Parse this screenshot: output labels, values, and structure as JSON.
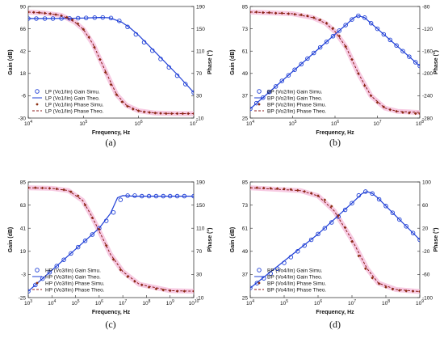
{
  "colors": {
    "gain": "#1f3fd6",
    "phase_line": "#8b1a1a",
    "phase_marker": "#8b2e10",
    "band": "#f4b8d8"
  },
  "chart_data": [
    {
      "type": "line",
      "caption": "(a)",
      "xlabel": "Frequency, Hz",
      "ylabel": "Gain (dB)",
      "y2label": "Phase (°)",
      "xscale": "log",
      "xlim": [
        10000,
        10000000
      ],
      "ylim": [
        -30,
        90
      ],
      "y2lim": [
        -10,
        190
      ],
      "xticks": [
        "10^4",
        "10^5",
        "10^6",
        "10^7"
      ],
      "yticks": [
        "-30",
        "-6",
        "18",
        "42",
        "66",
        "90"
      ],
      "y2ticks": [
        "-10",
        "30",
        "70",
        "110",
        "150",
        "190"
      ],
      "legend_position": "lower-left",
      "series": [
        {
          "name": "LP (Vo1/Iin) Gain Simu.",
          "axis": "left",
          "style": "marker-circle",
          "x": [
            10000,
            14000,
            20000,
            28000,
            40000,
            56000,
            80000,
            112000,
            160000,
            224000,
            316000,
            447000,
            632000,
            894000,
            1260000,
            1780000,
            2510000,
            3550000,
            5010000,
            7080000,
            10000000
          ],
          "y": [
            77,
            77,
            77,
            77,
            77.1,
            77.2,
            77.4,
            77.7,
            78,
            78.2,
            77.6,
            74.5,
            68,
            60,
            51.5,
            42.5,
            33.5,
            24.5,
            15.5,
            6.5,
            -2.5
          ]
        },
        {
          "name": "LP (Vo1/Iin) Gain Theo.",
          "axis": "left",
          "style": "solid",
          "x": [
            10000,
            20000,
            50000,
            100000,
            200000,
            300000,
            500000,
            700000,
            1000000,
            2000000,
            5000000,
            10000000
          ],
          "y": [
            77,
            77,
            77.2,
            77.6,
            78.2,
            77.8,
            73,
            67,
            59,
            41,
            17,
            -2.5
          ]
        },
        {
          "name": "LP (Vo1/Iin) Phase Simu.",
          "axis": "right",
          "style": "marker-diamond",
          "x": [
            10000,
            12600,
            15800,
            20000,
            25100,
            31600,
            39800,
            50100,
            63100,
            79400,
            100000,
            126000,
            158000,
            200000,
            251000,
            316000,
            398000,
            501000,
            631000,
            794000,
            1000000,
            1260000,
            1580000,
            2000000,
            2510000,
            3160000,
            3980000,
            5010000,
            6310000,
            7940000,
            10000000
          ],
          "y": [
            180,
            179.5,
            179,
            178,
            177,
            175.5,
            173.5,
            170.5,
            166,
            159,
            149,
            135,
            117,
            95,
            72,
            50,
            32,
            19,
            11,
            6,
            3,
            1,
            0,
            -1,
            -1.5,
            -2,
            -2,
            -2,
            -2,
            -2,
            -2
          ]
        },
        {
          "name": "LP (Vo1/Iin) Phase Theo.",
          "axis": "right",
          "style": "dashed",
          "x": [
            10000,
            20000,
            40000,
            70000,
            100000,
            150000,
            200000,
            300000,
            400000,
            600000,
            1000000,
            2000000,
            5000000,
            10000000
          ],
          "y": [
            180,
            178,
            174,
            162,
            149,
            122,
            95,
            58,
            32,
            13,
            3,
            -1,
            -2,
            -2
          ]
        }
      ]
    },
    {
      "type": "line",
      "caption": "(b)",
      "xlabel": "Frequency, Hz",
      "ylabel": "Gain (dB)",
      "y2label": "Phase (°)",
      "xscale": "log",
      "xlim": [
        10000,
        100000000
      ],
      "ylim": [
        25,
        85
      ],
      "y2lim": [
        -280,
        -80
      ],
      "xticks": [
        "10^4",
        "10^5",
        "10^6",
        "10^7",
        "10^8"
      ],
      "yticks": [
        "25",
        "37",
        "49",
        "61",
        "73",
        "85"
      ],
      "y2ticks": [
        "-280",
        "-240",
        "-200",
        "-160",
        "-120",
        "-80"
      ],
      "legend_position": "lower-left",
      "series": [
        {
          "name": "BP (Vo2/Iin) Gain Simu.",
          "axis": "left",
          "style": "marker-circle",
          "x": [
            10000,
            14000,
            20000,
            28000,
            40000,
            56000,
            80000,
            112000,
            160000,
            224000,
            316000,
            447000,
            632000,
            894000,
            1260000,
            1780000,
            2510000,
            3550000,
            5010000,
            7080000,
            10000000,
            14100000,
            20000000,
            28200000,
            39800000,
            56200000,
            79400000,
            100000000
          ],
          "y": [
            30,
            33,
            36,
            39,
            42,
            45,
            48,
            51,
            54,
            57,
            60,
            63,
            66,
            69,
            72,
            75,
            78,
            80,
            79,
            76,
            73,
            70,
            67,
            64,
            61,
            58,
            55,
            53
          ]
        },
        {
          "name": "BP (Vo2/Iin) Gain Theo.",
          "axis": "left",
          "style": "solid",
          "x": [
            10000,
            100000,
            1000000,
            2000000,
            2800000,
            3550000,
            5000000,
            7000000,
            10000000,
            100000000
          ],
          "y": [
            30,
            50,
            70,
            76,
            79,
            80,
            79,
            76,
            73,
            53
          ]
        },
        {
          "name": "BP (Vo2/Iin) Phase Simu.",
          "axis": "right",
          "style": "marker-diamond",
          "x": [
            10000,
            14000,
            20000,
            28000,
            40000,
            56000,
            80000,
            112000,
            160000,
            224000,
            316000,
            447000,
            632000,
            894000,
            1260000,
            1780000,
            2510000,
            3550000,
            5010000,
            7080000,
            10000000,
            14100000,
            20000000,
            28200000,
            39800000,
            56200000,
            79400000,
            100000000
          ],
          "y": [
            -90,
            -90,
            -91,
            -91,
            -92,
            -92,
            -93,
            -94,
            -95,
            -97,
            -100,
            -104,
            -110,
            -119,
            -133,
            -152,
            -175,
            -200,
            -222,
            -240,
            -252,
            -260,
            -265,
            -268,
            -270,
            -271,
            -272,
            -272
          ]
        },
        {
          "name": "BP (Vo2/Iin) Phase Theo.",
          "axis": "right",
          "style": "dashed",
          "x": [
            10000,
            100000,
            300000,
            600000,
            1000000,
            1800000,
            3550000,
            7000000,
            15000000,
            30000000,
            100000000
          ],
          "y": [
            -90,
            -93,
            -100,
            -110,
            -125,
            -152,
            -200,
            -240,
            -262,
            -268,
            -270
          ]
        }
      ]
    },
    {
      "type": "line",
      "caption": "(c)",
      "xlabel": "Frequency, Hz",
      "ylabel": "Gain (dB)",
      "y2label": "Phase (°)",
      "xscale": "log",
      "xlim": [
        1000,
        10000000000
      ],
      "ylim": [
        -25,
        85
      ],
      "y2lim": [
        -10,
        190
      ],
      "xticks": [
        "10^3",
        "10^4",
        "10^5",
        "10^6",
        "10^7",
        "10^8",
        "10^9",
        "10^10"
      ],
      "yticks": [
        "-25",
        "-3",
        "19",
        "41",
        "63",
        "85"
      ],
      "y2ticks": [
        "-10",
        "30",
        "70",
        "110",
        "150",
        "190"
      ],
      "legend_position": "lower-left",
      "series": [
        {
          "name": "HP (Vo3/Iin) Gain Simu.",
          "axis": "left",
          "style": "marker-circle",
          "x": [
            1000,
            2000,
            4000,
            8000,
            16000,
            32000,
            64000,
            128000,
            256000,
            512000,
            1000000,
            2000000,
            4000000,
            8000000,
            16000000,
            32000000,
            64000000,
            128000000,
            256000000,
            512000000,
            1000000000,
            2000000000,
            4000000000,
            10000000000
          ],
          "y": [
            -19,
            -13,
            -7,
            -1,
            5,
            11,
            17,
            23,
            29,
            35,
            41,
            48,
            56,
            68,
            72,
            72,
            71.5,
            71.5,
            71.5,
            71.5,
            71.5,
            71.5,
            71.5,
            71.5
          ]
        },
        {
          "name": "HP (Vo3/Iin) Gain Theo.",
          "axis": "left",
          "style": "solid",
          "x": [
            1000,
            100000,
            1000000,
            3000000,
            6000000,
            10000000,
            30000000,
            10000000000
          ],
          "y": [
            -19,
            21,
            41,
            55,
            70,
            72,
            71.5,
            71.5
          ]
        },
        {
          "name": "HP (Vo3/Iin) Phase Simu.",
          "axis": "right",
          "style": "marker-diamond",
          "x": [
            1000,
            2000,
            4000,
            8000,
            16000,
            32000,
            64000,
            128000,
            256000,
            512000,
            1000000,
            2000000,
            4000000,
            8000000,
            16000000,
            32000000,
            64000000,
            128000000,
            256000000,
            512000000,
            1000000000,
            2000000000,
            4000000000,
            10000000000
          ],
          "y": [
            180,
            180,
            179.5,
            179,
            178,
            176.5,
            173,
            166,
            150,
            128,
            108,
            80,
            56,
            38,
            26,
            18,
            12,
            8,
            5,
            3,
            2,
            1,
            1,
            1
          ]
        },
        {
          "name": "HP (Vo3/Iin) Phase Theo.",
          "axis": "right",
          "style": "dashed",
          "x": [
            1000,
            10000,
            50000,
            200000,
            500000,
            1000000,
            3000000,
            10000000,
            50000000,
            1000000000,
            10000000000
          ],
          "y": [
            180,
            179,
            175,
            158,
            130,
            105,
            65,
            35,
            13,
            2,
            1
          ]
        }
      ]
    },
    {
      "type": "line",
      "caption": "(d)",
      "xlabel": "Frequency, Hz",
      "ylabel": "Gain (dB)",
      "y2label": "Phase (°)",
      "xscale": "log",
      "xlim": [
        10000,
        1000000000
      ],
      "ylim": [
        25,
        85
      ],
      "y2lim": [
        -100,
        100
      ],
      "xticks": [
        "10^4",
        "10^5",
        "10^6",
        "10^7",
        "10^8",
        "10^9"
      ],
      "yticks": [
        "25",
        "37",
        "49",
        "61",
        "73",
        "85"
      ],
      "y2ticks": [
        "-100",
        "-60",
        "-20",
        "20",
        "60",
        "100"
      ],
      "legend_position": "lower-left",
      "series": [
        {
          "name": "BP (Vo4/Iin) Gain Simu.",
          "axis": "left",
          "style": "marker-circle",
          "x": [
            10000,
            15800,
            25100,
            39800,
            63100,
            100000,
            158000,
            251000,
            398000,
            631000,
            1000000,
            1580000,
            2510000,
            3980000,
            6310000,
            10000000,
            15800000,
            25100000,
            39800000,
            63100000,
            100000000,
            158000000,
            251000000,
            398000000,
            631000000,
            1000000000
          ],
          "y": [
            30,
            32.5,
            35,
            37.5,
            40,
            43,
            46,
            49,
            52,
            55,
            58,
            61,
            64,
            67,
            70.5,
            74,
            78,
            80,
            79,
            76,
            72.5,
            69,
            65.5,
            62,
            58.5,
            55
          ]
        },
        {
          "name": "BP (Vo4/Iin) Gain Theo.",
          "axis": "left",
          "style": "solid",
          "x": [
            10000,
            1000000,
            10000000,
            20000000,
            28000000,
            40000000,
            60000000,
            100000000,
            1000000000
          ],
          "y": [
            30,
            58,
            74,
            79,
            80,
            79,
            76.5,
            72.5,
            55
          ]
        },
        {
          "name": "BP (Vo4/Iin) Phase Simu.",
          "axis": "right",
          "style": "marker-diamond",
          "x": [
            10000,
            15800,
            25100,
            39800,
            63100,
            100000,
            158000,
            251000,
            398000,
            631000,
            1000000,
            1580000,
            2510000,
            3980000,
            6310000,
            10000000,
            15800000,
            25100000,
            39800000,
            63100000,
            100000000,
            158000000,
            251000000,
            398000000,
            631000000,
            1000000000
          ],
          "y": [
            90,
            90,
            89.5,
            89,
            88.5,
            88,
            87,
            85.5,
            83.5,
            80.5,
            76,
            69,
            58,
            42,
            21,
            -3,
            -28,
            -50,
            -66,
            -76,
            -82,
            -85.5,
            -87.5,
            -88.5,
            -89,
            -89.5
          ]
        },
        {
          "name": "BP (Vo4/Iin) Phase Theo.",
          "axis": "right",
          "style": "dashed",
          "x": [
            10000,
            300000,
            1000000,
            3000000,
            10000000,
            28000000,
            60000000,
            200000000,
            1000000000
          ],
          "y": [
            90,
            85,
            76,
            50,
            0,
            -50,
            -75,
            -86,
            -89.5
          ]
        }
      ]
    }
  ]
}
